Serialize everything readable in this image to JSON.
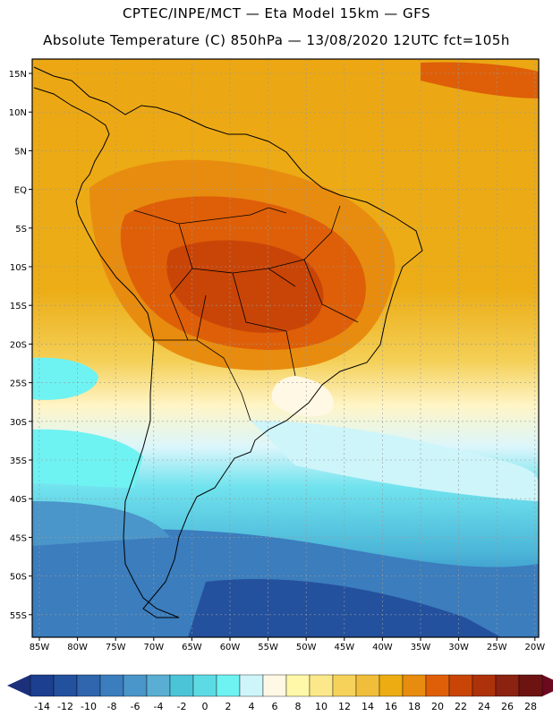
{
  "header": {
    "line1": "CPTEC/INPE/MCT —  Eta Model 15km — GFS",
    "line2": "Absolute Temperature (C) 850hPa — 13/08/2020 12UTC fct=105h"
  },
  "axes": {
    "lat_labels": [
      "15N",
      "10N",
      "5N",
      "EQ",
      "5S",
      "10S",
      "15S",
      "20S",
      "25S",
      "30S",
      "35S",
      "40S",
      "45S",
      "50S",
      "55S"
    ],
    "lon_labels": [
      "85W",
      "80W",
      "75W",
      "70W",
      "65W",
      "60W",
      "55W",
      "50W",
      "45W",
      "40W",
      "35W",
      "30W",
      "25W",
      "20W"
    ]
  },
  "colorbar": {
    "labels": [
      "-14",
      "-12",
      "-10",
      "-8",
      "-6",
      "-4",
      "-2",
      "0",
      "2",
      "4",
      "6",
      "8",
      "10",
      "12",
      "14",
      "16",
      "18",
      "20",
      "22",
      "24",
      "26",
      "28"
    ],
    "colors": [
      "#1c3f8f",
      "#24519e",
      "#2f66ad",
      "#3b7dbd",
      "#4a95c9",
      "#5aaed3",
      "#4cc4d8",
      "#5ddbe5",
      "#6ff2f2",
      "#cdf5fa",
      "#fff8e4",
      "#fff8a8",
      "#fbe88a",
      "#f6d25a",
      "#f0be3a",
      "#ecac12",
      "#e88c0f",
      "#de5f08",
      "#c94507",
      "#ad320a",
      "#8c2210",
      "#6d1412"
    ],
    "under_color": "#1c2f7a",
    "over_color": "#6b0a1e"
  },
  "colors": {
    "coast": "#000000",
    "grid": "#999999"
  }
}
